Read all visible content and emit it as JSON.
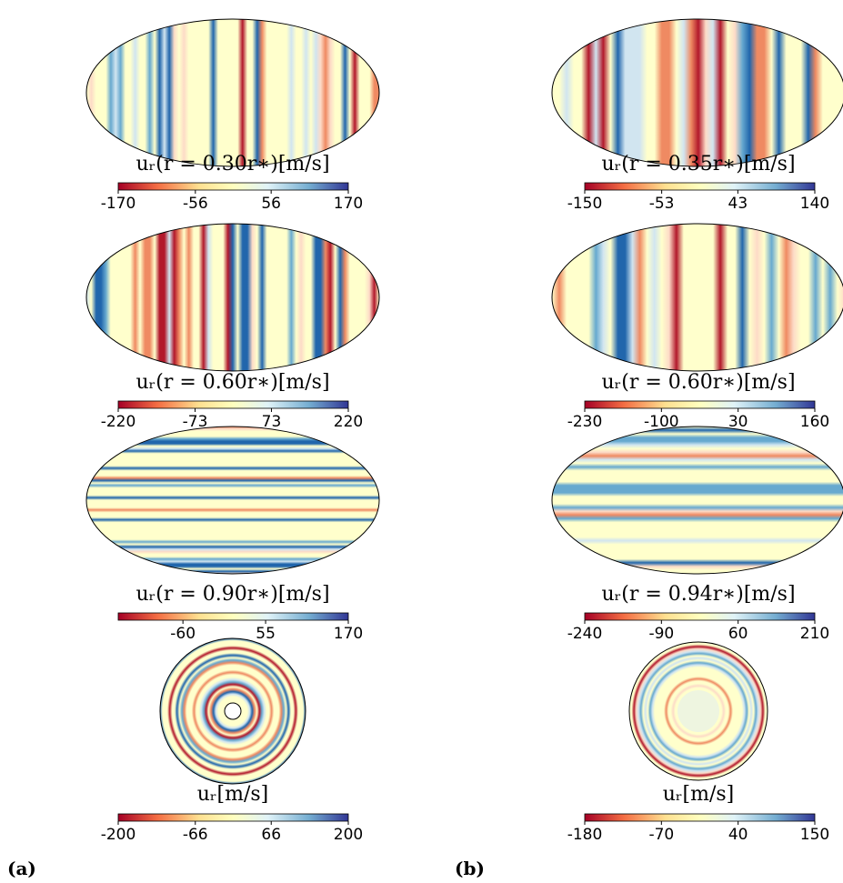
{
  "panels": [
    {
      "label": "(a)",
      "plots": [
        {
          "kind": "mollweide",
          "title": "uᵣ(r = 0.30r∗)[m/s]",
          "clim": [
            -170,
            170
          ],
          "ticks": [
            -170,
            -56,
            56,
            170
          ]
        },
        {
          "kind": "mollweide",
          "title": "uᵣ(r = 0.60r∗)[m/s]",
          "clim": [
            -220,
            220
          ],
          "ticks": [
            -220,
            -73,
            73,
            220
          ]
        },
        {
          "kind": "mollweide",
          "title": "uᵣ(r = 0.90r∗)[m/s]",
          "clim": [
            -150,
            170
          ],
          "ticks": [
            -60,
            55,
            170
          ]
        },
        {
          "kind": "disk",
          "title": "uᵣ[m/s]",
          "clim": [
            -200,
            200
          ],
          "ticks": [
            -200,
            -66,
            66,
            200
          ]
        }
      ]
    },
    {
      "label": "(b)",
      "plots": [
        {
          "kind": "mollweide",
          "title": "uᵣ(r = 0.35r∗)[m/s]",
          "clim": [
            -150,
            140
          ],
          "ticks": [
            -150,
            -53,
            43,
            140
          ]
        },
        {
          "kind": "mollweide",
          "title": "uᵣ(r = 0.60r∗)[m/s]",
          "clim": [
            -230,
            160
          ],
          "ticks": [
            -230,
            -100,
            30,
            160
          ]
        },
        {
          "kind": "mollweide",
          "title": "uᵣ(r = 0.94r∗)[m/s]",
          "clim": [
            -240,
            210
          ],
          "ticks": [
            -240,
            -90,
            60,
            210
          ]
        },
        {
          "kind": "disk",
          "title": "uᵣ[m/s]",
          "clim": [
            -180,
            150
          ],
          "ticks": [
            -180,
            -70,
            40,
            150
          ]
        }
      ]
    }
  ]
}
